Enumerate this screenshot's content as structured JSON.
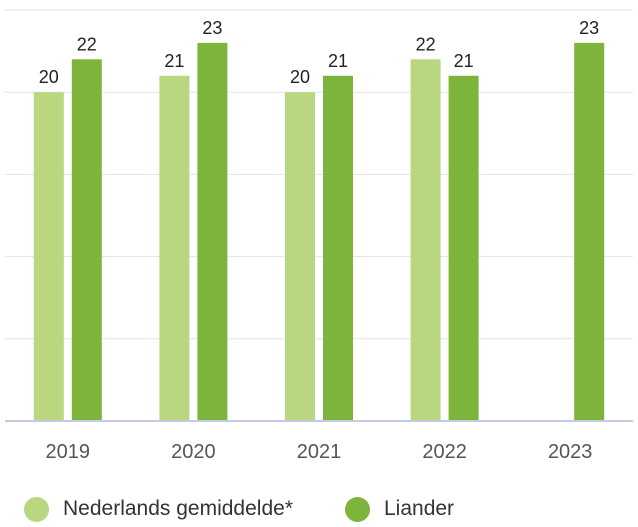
{
  "chart_data": {
    "type": "bar",
    "title": "",
    "xlabel": "",
    "ylabel": "",
    "categories": [
      "2019",
      "2020",
      "2021",
      "2022",
      "2023"
    ],
    "ylim": [
      0,
      25
    ],
    "grid": true,
    "legend_position": "bottom-left",
    "series": [
      {
        "name": "Nederlands gemiddelde*",
        "color": "#b8d77f",
        "values": [
          20,
          21,
          20,
          22,
          null
        ],
        "labels": [
          "20",
          "21",
          "20",
          "22",
          ""
        ]
      },
      {
        "name": "Liander",
        "color": "#7db43c",
        "values": [
          22,
          23,
          21,
          21,
          23
        ],
        "labels": [
          "22",
          "23",
          "21",
          "21",
          "23"
        ]
      }
    ]
  }
}
